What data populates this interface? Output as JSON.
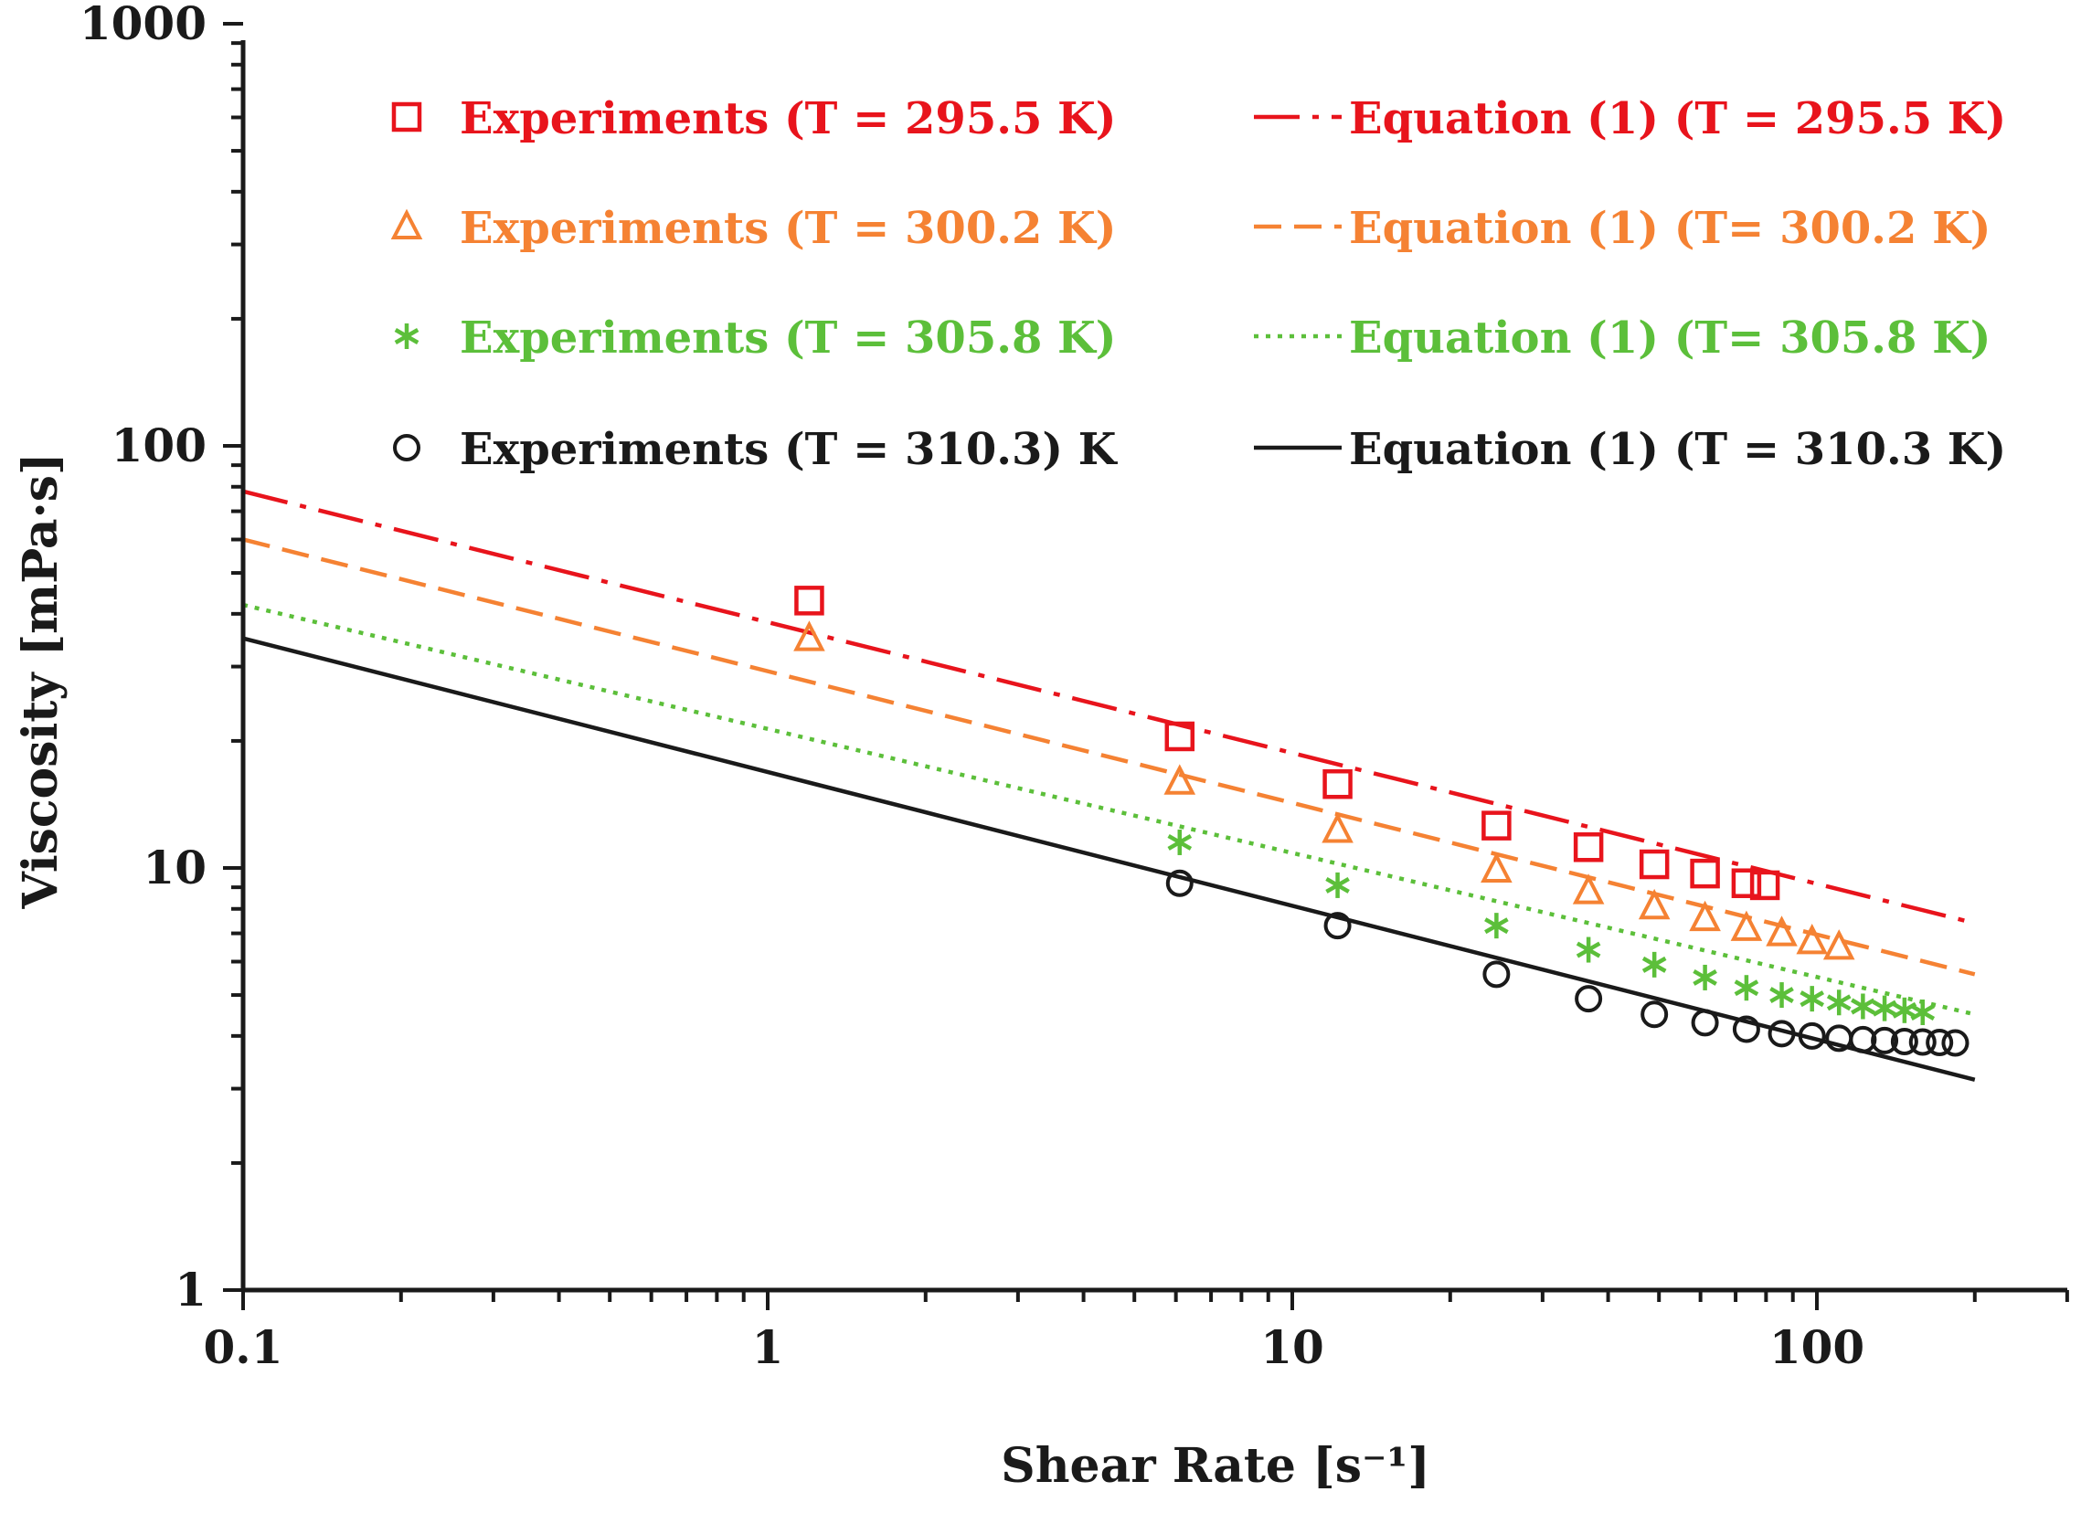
{
  "chart_data": {
    "type": "scatter",
    "title": "",
    "xlabel": "Shear Rate [s⁻¹]",
    "ylabel": "Viscosity [mPa·s]",
    "xscale": "log",
    "yscale": "log",
    "xlim": [
      0.1,
      400
    ],
    "ylim": [
      1,
      1000
    ],
    "x_ticks": [
      0.1,
      1,
      10,
      100
    ],
    "x_tick_labels": [
      "0.1",
      "1",
      "10",
      "100"
    ],
    "y_ticks": [
      1,
      10,
      100,
      1000
    ],
    "y_tick_labels": [
      "1",
      "10",
      "100",
      "1000"
    ],
    "grid": false,
    "legend_position": "top",
    "series": [
      {
        "name": "Experiments (T = 295.5 K)",
        "kind": "scatter",
        "marker": "square",
        "color": "#e8141c",
        "x": [
          1.2,
          6.1,
          12.2,
          24.5,
          36.7,
          49.0,
          61.2,
          73.4,
          79.6
        ],
        "y": [
          43,
          20.5,
          15.8,
          12.6,
          11.2,
          10.2,
          9.7,
          9.2,
          9.1
        ]
      },
      {
        "name": "Experiments (T = 300.2 K)",
        "kind": "scatter",
        "marker": "triangle",
        "color": "#f58233",
        "x": [
          1.2,
          6.1,
          12.2,
          24.5,
          36.7,
          49.0,
          61.2,
          73.4,
          85.7,
          97.9,
          110.2
        ],
        "y": [
          35,
          16,
          12.3,
          9.9,
          8.8,
          8.1,
          7.6,
          7.2,
          7.0,
          6.7,
          6.5
        ]
      },
      {
        "name": "Experiments (T = 305.8 K)",
        "kind": "scatter",
        "marker": "asterisk",
        "color": "#5cbf3a",
        "x": [
          6.1,
          12.2,
          24.5,
          36.7,
          49.0,
          61.2,
          73.4,
          85.7,
          97.9,
          110.2,
          122.4,
          134.6,
          146.9,
          159.1
        ],
        "y": [
          11.5,
          9.1,
          7.3,
          6.4,
          5.9,
          5.5,
          5.2,
          5.0,
          4.9,
          4.8,
          4.7,
          4.65,
          4.6,
          4.55
        ]
      },
      {
        "name": "Experiments (T = 310.3) K",
        "kind": "scatter",
        "marker": "circle",
        "color": "#1a1a1a",
        "x": [
          6.1,
          12.2,
          24.5,
          36.7,
          49.0,
          61.2,
          73.4,
          85.7,
          97.9,
          110.2,
          122.4,
          134.6,
          146.9,
          159.1,
          171.3,
          183.6
        ],
        "y": [
          9.2,
          7.3,
          5.6,
          4.9,
          4.5,
          4.3,
          4.15,
          4.05,
          4.0,
          3.95,
          3.92,
          3.9,
          3.88,
          3.87,
          3.86,
          3.85
        ]
      },
      {
        "name": "Equation (1) (T = 295.5 K)",
        "kind": "line",
        "dash": "dashdot",
        "color": "#e8141c",
        "x": [
          0.1,
          200
        ],
        "y": [
          78,
          7.4
        ]
      },
      {
        "name": "Equation (1) (T= 300.2 K)",
        "kind": "line",
        "dash": "dash",
        "color": "#f58233",
        "x": [
          0.1,
          200
        ],
        "y": [
          60,
          5.6
        ]
      },
      {
        "name": "Equation (1) (T= 305.8 K)",
        "kind": "line",
        "dash": "dot",
        "color": "#5cbf3a",
        "x": [
          0.1,
          200
        ],
        "y": [
          42,
          4.5
        ]
      },
      {
        "name": "Equation (1) (T = 310.3 K)",
        "kind": "line",
        "dash": "solid",
        "color": "#1a1a1a",
        "x": [
          0.1,
          200
        ],
        "y": [
          35,
          3.15
        ]
      }
    ]
  }
}
